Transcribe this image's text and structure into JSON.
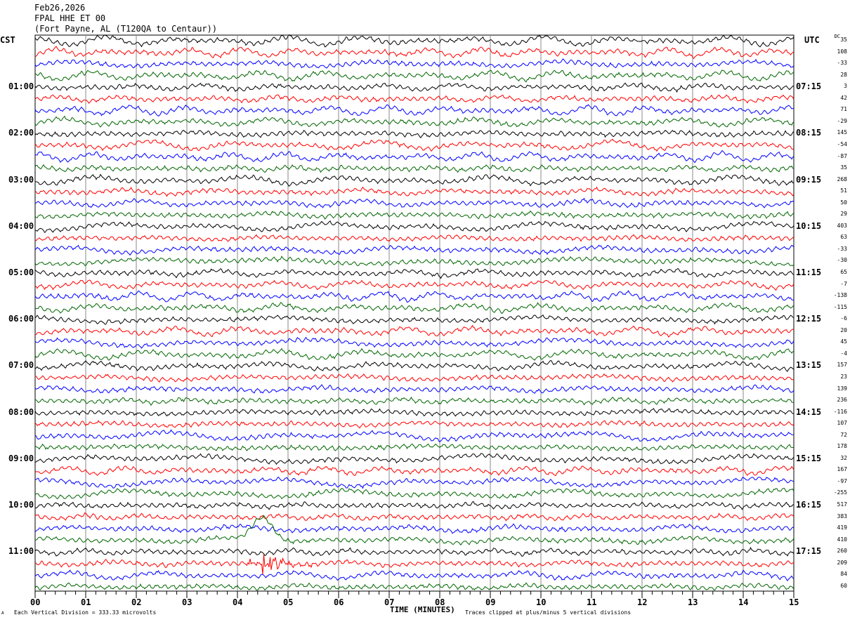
{
  "header": {
    "date": "Feb26,2026",
    "station": "FPAL HHE ET 00",
    "location": "(Fort Payne, AL (T120QA to Centaur))"
  },
  "chart_data": {
    "type": "line",
    "title": "FPAL HHE ET 00",
    "xlabel": "TIME (MINUTES)",
    "xlim": [
      0,
      15
    ],
    "x_ticks": [
      "00",
      "01",
      "02",
      "03",
      "04",
      "05",
      "06",
      "07",
      "08",
      "09",
      "10",
      "11",
      "12",
      "13",
      "14",
      "15"
    ],
    "left_axis_title": "CST",
    "right_axis_title": "UTC",
    "dc_title": "DC",
    "left_labels": [
      "01:00",
      "02:00",
      "03:00",
      "04:00",
      "05:00",
      "06:00",
      "07:00",
      "08:00",
      "09:00",
      "10:00",
      "11:00"
    ],
    "right_labels": [
      "07:15",
      "08:15",
      "09:15",
      "10:15",
      "11:15",
      "12:15",
      "13:15",
      "14:15",
      "15:15",
      "16:15",
      "17:15"
    ],
    "traces_per_hour": 4,
    "trace_count": 48,
    "trace_colors": [
      "#000000",
      "#ff0000",
      "#0000ff",
      "#006600"
    ],
    "dc_offsets": [
      "35",
      "108",
      "-33",
      "28",
      "3",
      "42",
      "71",
      "-29",
      "145",
      "-54",
      "-87",
      "35",
      "268",
      "51",
      "50",
      "29",
      "403",
      "63",
      "-33",
      "-30",
      "65",
      "-7",
      "-138",
      "-115",
      "-6",
      "20",
      "45",
      "-4",
      "157",
      "23",
      "139",
      "236",
      "-116",
      "107",
      "72",
      "178",
      "32",
      "167",
      "-97",
      "-255",
      "517",
      "383",
      "419",
      "410",
      "260",
      "209",
      "84",
      "60"
    ],
    "events": [
      {
        "trace": 45,
        "minute": 4.5,
        "type": "burst"
      },
      {
        "trace": 43,
        "minute": 4.5,
        "type": "spike"
      }
    ],
    "footer_left": "Each Vertical Division =  333.33 microvolts",
    "footer_right": "Traces clipped at plus/minus 5 vertical divisions",
    "corner_mark": "A"
  }
}
